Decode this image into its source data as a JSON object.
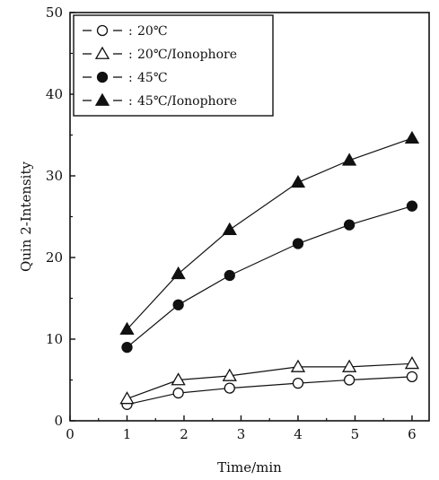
{
  "chart_data": {
    "type": "line",
    "xlabel": "Time/min",
    "ylabel": "Quin 2-Intensity",
    "xlim": [
      0,
      6.3
    ],
    "ylim": [
      0,
      50
    ],
    "x_ticks": [
      0,
      1,
      2,
      3,
      4,
      5,
      6
    ],
    "y_ticks": [
      0,
      10,
      20,
      30,
      40,
      50
    ],
    "legend_position": "top-left",
    "grid": false,
    "series": [
      {
        "name": "20℃",
        "marker": "circle-open",
        "x": [
          1,
          1.9,
          2.8,
          4,
          4.9,
          6
        ],
        "y": [
          2,
          3.4,
          4,
          4.6,
          5,
          5.4
        ]
      },
      {
        "name": "20℃/Ionophore",
        "marker": "triangle-open",
        "x": [
          1,
          1.9,
          2.8,
          4,
          4.9,
          6
        ],
        "y": [
          2.7,
          5,
          5.5,
          6.6,
          6.6,
          7
        ]
      },
      {
        "name": "45℃",
        "marker": "circle-filled",
        "x": [
          1,
          1.9,
          2.8,
          4,
          4.9,
          6
        ],
        "y": [
          9,
          14.2,
          17.8,
          21.7,
          24,
          26.3
        ]
      },
      {
        "name": "45℃/Ionophore",
        "marker": "triangle-filled",
        "x": [
          1,
          1.9,
          2.8,
          4,
          4.9,
          6
        ],
        "y": [
          11.2,
          18,
          23.4,
          29.2,
          31.9,
          34.6
        ]
      }
    ]
  }
}
